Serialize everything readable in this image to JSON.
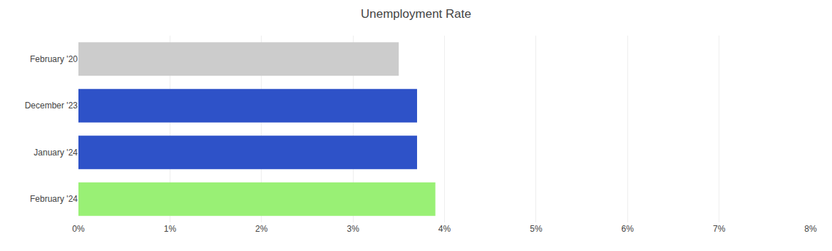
{
  "chart_data": {
    "type": "bar",
    "orientation": "horizontal",
    "title": "Unemployment Rate",
    "categories": [
      "February '20",
      "December '23",
      "January '24",
      "February '24"
    ],
    "values": [
      3.5,
      3.7,
      3.7,
      3.9
    ],
    "colors": [
      "#cccccc",
      "#2e52c8",
      "#2e52c8",
      "#99f075"
    ],
    "xlim": [
      0,
      8
    ],
    "xticks": [
      {
        "value": 0,
        "label": "0%"
      },
      {
        "value": 1,
        "label": "1%"
      },
      {
        "value": 2,
        "label": "2%"
      },
      {
        "value": 3,
        "label": "3%"
      },
      {
        "value": 4,
        "label": "4%"
      },
      {
        "value": 5,
        "label": "5%"
      },
      {
        "value": 6,
        "label": "6%"
      },
      {
        "value": 7,
        "label": "7%"
      },
      {
        "value": 8,
        "label": "8%"
      }
    ],
    "grid": true
  }
}
